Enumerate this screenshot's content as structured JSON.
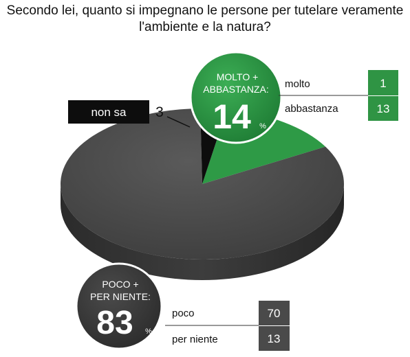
{
  "title_lines": [
    "Secondo lei, quanto si impegnano le persone per tutelare veramente",
    "l'ambiente e la natura?"
  ],
  "colors": {
    "green": "#2e9a46",
    "green_dark": "#1f7a33",
    "dark": "#474747",
    "black": "#0d0d0d",
    "box_green": "#2f9444",
    "box_gray": "#4a4a4a"
  },
  "chart_data": {
    "type": "pie",
    "title": "Secondo lei, quanto si impegnano le persone per tutelare veramente l'ambiente e la natura?",
    "unit": "%",
    "slices": [
      {
        "key": "molto_abbastanza",
        "label": "MOLTO + ABBASTANZA:",
        "value": 14,
        "color": "#2e9a46",
        "breakdown": [
          {
            "label": "molto",
            "value": "1"
          },
          {
            "label": "abbastanza",
            "value": "13"
          }
        ]
      },
      {
        "key": "non_sa",
        "label": "non sa",
        "value": 3,
        "color": "#0d0d0d"
      },
      {
        "key": "poco_per_niente",
        "label": "POCO + PER NIENTE:",
        "value": 83,
        "color": "#474747",
        "breakdown": [
          {
            "label": "poco",
            "value": "70"
          },
          {
            "label": "per niente",
            "value": "13"
          }
        ]
      }
    ]
  },
  "callouts": {
    "molto_abbastanza": {
      "line1": "MOLTO +",
      "line2": "ABBASTANZA:",
      "value": "14",
      "unit": "%"
    },
    "poco_per_niente": {
      "line1": "POCO +",
      "line2": "PER NIENTE:",
      "value": "83",
      "unit": "%"
    },
    "non_sa": {
      "label": "non sa",
      "value": "3"
    }
  }
}
